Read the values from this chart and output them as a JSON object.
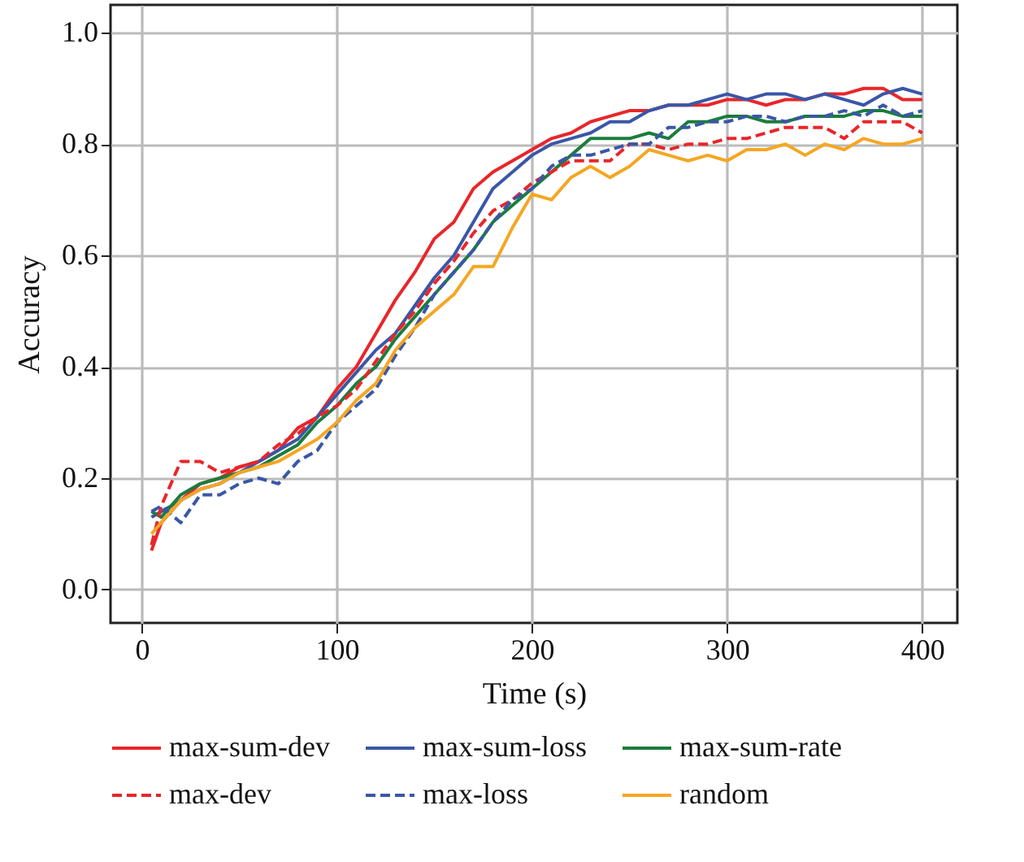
{
  "chart_data": {
    "type": "line",
    "xlabel": "Time (s)",
    "ylabel": "Accuracy",
    "x": [
      5,
      10,
      20,
      30,
      40,
      50,
      60,
      70,
      80,
      90,
      100,
      110,
      120,
      130,
      140,
      150,
      160,
      170,
      180,
      190,
      200,
      210,
      220,
      230,
      240,
      250,
      260,
      270,
      280,
      290,
      300,
      310,
      320,
      330,
      340,
      350,
      360,
      370,
      380,
      390,
      400
    ],
    "series": [
      {
        "name": "max-sum-dev",
        "color": "#e8262a",
        "line_style": "solid",
        "values": [
          0.07,
          0.12,
          0.16,
          0.19,
          0.2,
          0.22,
          0.23,
          0.25,
          0.29,
          0.31,
          0.36,
          0.4,
          0.46,
          0.52,
          0.57,
          0.63,
          0.66,
          0.72,
          0.75,
          0.77,
          0.79,
          0.81,
          0.82,
          0.84,
          0.85,
          0.86,
          0.86,
          0.87,
          0.87,
          0.87,
          0.88,
          0.88,
          0.87,
          0.88,
          0.88,
          0.89,
          0.89,
          0.9,
          0.9,
          0.88,
          0.88
        ]
      },
      {
        "name": "max-sum-loss",
        "color": "#3a57a7",
        "line_style": "solid",
        "values": [
          0.13,
          0.14,
          0.16,
          0.18,
          0.19,
          0.21,
          0.23,
          0.25,
          0.27,
          0.31,
          0.35,
          0.39,
          0.43,
          0.46,
          0.51,
          0.56,
          0.6,
          0.66,
          0.72,
          0.75,
          0.78,
          0.8,
          0.81,
          0.82,
          0.84,
          0.84,
          0.86,
          0.87,
          0.87,
          0.88,
          0.89,
          0.88,
          0.89,
          0.89,
          0.88,
          0.89,
          0.88,
          0.87,
          0.89,
          0.9,
          0.89
        ]
      },
      {
        "name": "max-sum-rate",
        "color": "#1b7c3d",
        "line_style": "solid",
        "values": [
          0.14,
          0.13,
          0.17,
          0.19,
          0.2,
          0.21,
          0.22,
          0.24,
          0.26,
          0.3,
          0.33,
          0.37,
          0.4,
          0.45,
          0.49,
          0.53,
          0.57,
          0.61,
          0.66,
          0.69,
          0.72,
          0.75,
          0.78,
          0.81,
          0.81,
          0.81,
          0.82,
          0.81,
          0.84,
          0.84,
          0.85,
          0.85,
          0.84,
          0.84,
          0.85,
          0.85,
          0.85,
          0.86,
          0.86,
          0.85,
          0.85
        ]
      },
      {
        "name": "max-dev",
        "color": "#e8262a",
        "line_style": "dashed",
        "values": [
          0.08,
          0.15,
          0.23,
          0.23,
          0.21,
          0.22,
          0.23,
          0.26,
          0.28,
          0.31,
          0.33,
          0.36,
          0.41,
          0.46,
          0.5,
          0.55,
          0.59,
          0.64,
          0.68,
          0.7,
          0.73,
          0.75,
          0.77,
          0.77,
          0.77,
          0.8,
          0.8,
          0.79,
          0.8,
          0.8,
          0.81,
          0.81,
          0.82,
          0.83,
          0.83,
          0.83,
          0.81,
          0.84,
          0.84,
          0.84,
          0.82
        ]
      },
      {
        "name": "max-loss",
        "color": "#3a57a7",
        "line_style": "dashed",
        "values": [
          0.14,
          0.15,
          0.12,
          0.17,
          0.17,
          0.19,
          0.2,
          0.19,
          0.23,
          0.25,
          0.3,
          0.33,
          0.36,
          0.42,
          0.47,
          0.53,
          0.57,
          0.61,
          0.66,
          0.7,
          0.72,
          0.76,
          0.78,
          0.78,
          0.79,
          0.8,
          0.8,
          0.83,
          0.83,
          0.84,
          0.84,
          0.85,
          0.85,
          0.84,
          0.85,
          0.85,
          0.86,
          0.85,
          0.87,
          0.85,
          0.86
        ]
      },
      {
        "name": "random",
        "color": "#f5a623",
        "line_style": "solid",
        "values": [
          0.1,
          0.12,
          0.16,
          0.18,
          0.19,
          0.21,
          0.22,
          0.23,
          0.25,
          0.27,
          0.3,
          0.34,
          0.37,
          0.43,
          0.47,
          0.5,
          0.53,
          0.58,
          0.58,
          0.65,
          0.71,
          0.7,
          0.74,
          0.76,
          0.74,
          0.76,
          0.79,
          0.78,
          0.77,
          0.78,
          0.77,
          0.79,
          0.79,
          0.8,
          0.78,
          0.8,
          0.79,
          0.81,
          0.8,
          0.8,
          0.81
        ]
      }
    ],
    "xlim": [
      -16,
      418
    ],
    "xticks": [
      0,
      100,
      200,
      300,
      400
    ],
    "ylim": [
      -0.06,
      1.05
    ],
    "yticks": [
      {
        "value": 0,
        "label": "0.0"
      },
      {
        "value": 0.2,
        "label": "0.2"
      },
      {
        "value": 0.4,
        "label": "0.4"
      },
      {
        "value": 0.6,
        "label": "0.6"
      },
      {
        "value": 0.8,
        "label": "0.8"
      },
      {
        "value": 1,
        "label": "1.0"
      }
    ],
    "grid": true,
    "legend": "bottom"
  }
}
